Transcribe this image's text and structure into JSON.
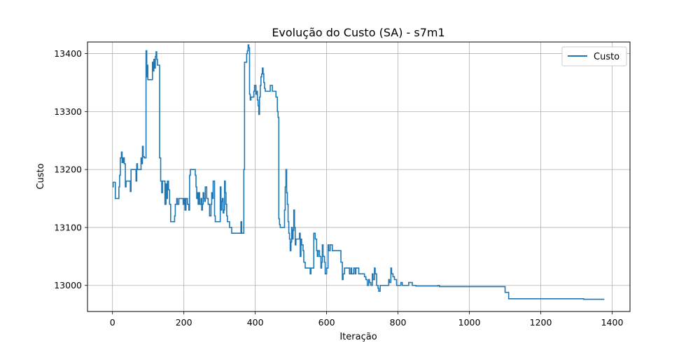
{
  "chart_data": {
    "type": "line",
    "title": "Evolução do Custo (SA) - s7m1",
    "xlabel": "Iteração",
    "ylabel": "Custo",
    "xlim": [
      -70,
      1450
    ],
    "ylim": [
      12955,
      13420
    ],
    "xticks": [
      0,
      200,
      400,
      600,
      800,
      1000,
      1200,
      1400
    ],
    "yticks": [
      13000,
      13100,
      13200,
      13300,
      13400
    ],
    "grid": true,
    "legend_position": "top-right",
    "color": "#1f77b4",
    "series": [
      {
        "name": "Custo",
        "step": "post",
        "points": [
          [
            0,
            13170
          ],
          [
            2,
            13178
          ],
          [
            6,
            13178
          ],
          [
            8,
            13150
          ],
          [
            16,
            13150
          ],
          [
            18,
            13170
          ],
          [
            20,
            13190
          ],
          [
            22,
            13220
          ],
          [
            25,
            13230
          ],
          [
            27,
            13212
          ],
          [
            30,
            13220
          ],
          [
            33,
            13210
          ],
          [
            36,
            13170
          ],
          [
            38,
            13180
          ],
          [
            48,
            13180
          ],
          [
            50,
            13162
          ],
          [
            52,
            13200
          ],
          [
            64,
            13200
          ],
          [
            66,
            13180
          ],
          [
            68,
            13210
          ],
          [
            70,
            13200
          ],
          [
            78,
            13200
          ],
          [
            80,
            13220
          ],
          [
            82,
            13210
          ],
          [
            84,
            13240
          ],
          [
            86,
            13222
          ],
          [
            89,
            13220
          ],
          [
            92,
            13220
          ],
          [
            94,
            13405
          ],
          [
            96,
            13360
          ],
          [
            98,
            13380
          ],
          [
            99,
            13355
          ],
          [
            110,
            13355
          ],
          [
            112,
            13385
          ],
          [
            114,
            13370
          ],
          [
            116,
            13390
          ],
          [
            118,
            13375
          ],
          [
            120,
            13395
          ],
          [
            122,
            13403
          ],
          [
            124,
            13390
          ],
          [
            126,
            13380
          ],
          [
            130,
            13380
          ],
          [
            132,
            13220
          ],
          [
            135,
            13180
          ],
          [
            138,
            13160
          ],
          [
            140,
            13180
          ],
          [
            145,
            13180
          ],
          [
            147,
            13140
          ],
          [
            150,
            13175
          ],
          [
            152,
            13150
          ],
          [
            154,
            13180
          ],
          [
            157,
            13165
          ],
          [
            160,
            13140
          ],
          [
            163,
            13110
          ],
          [
            166,
            13110
          ],
          [
            174,
            13120
          ],
          [
            176,
            13140
          ],
          [
            180,
            13150
          ],
          [
            182,
            13140
          ],
          [
            186,
            13150
          ],
          [
            198,
            13140
          ],
          [
            200,
            13150
          ],
          [
            203,
            13130
          ],
          [
            206,
            13150
          ],
          [
            210,
            13140
          ],
          [
            214,
            13130
          ],
          [
            216,
            13190
          ],
          [
            218,
            13200
          ],
          [
            230,
            13200
          ],
          [
            232,
            13190
          ],
          [
            234,
            13170
          ],
          [
            236,
            13150
          ],
          [
            238,
            13160
          ],
          [
            240,
            13140
          ],
          [
            242,
            13160
          ],
          [
            244,
            13140
          ],
          [
            246,
            13140
          ],
          [
            248,
            13150
          ],
          [
            250,
            13130
          ],
          [
            252,
            13140
          ],
          [
            254,
            13160
          ],
          [
            256,
            13150
          ],
          [
            258,
            13145
          ],
          [
            260,
            13170
          ],
          [
            264,
            13150
          ],
          [
            268,
            13140
          ],
          [
            272,
            13120
          ],
          [
            276,
            13140
          ],
          [
            278,
            13160
          ],
          [
            280,
            13150
          ],
          [
            282,
            13180
          ],
          [
            286,
            13120
          ],
          [
            288,
            13110
          ],
          [
            300,
            13110
          ],
          [
            302,
            13170
          ],
          [
            304,
            13130
          ],
          [
            306,
            13145
          ],
          [
            308,
            13150
          ],
          [
            310,
            13125
          ],
          [
            312,
            13130
          ],
          [
            314,
            13180
          ],
          [
            316,
            13160
          ],
          [
            318,
            13140
          ],
          [
            320,
            13120
          ],
          [
            322,
            13110
          ],
          [
            326,
            13110
          ],
          [
            328,
            13100
          ],
          [
            332,
            13100
          ],
          [
            334,
            13090
          ],
          [
            356,
            13090
          ],
          [
            360,
            13110
          ],
          [
            362,
            13090
          ],
          [
            364,
            13090
          ],
          [
            368,
            13200
          ],
          [
            370,
            13385
          ],
          [
            374,
            13385
          ],
          [
            376,
            13400
          ],
          [
            378,
            13405
          ],
          [
            380,
            13415
          ],
          [
            382,
            13410
          ],
          [
            384,
            13330
          ],
          [
            386,
            13320
          ],
          [
            388,
            13325
          ],
          [
            392,
            13325
          ],
          [
            396,
            13335
          ],
          [
            398,
            13345
          ],
          [
            400,
            13345
          ],
          [
            402,
            13330
          ],
          [
            404,
            13335
          ],
          [
            406,
            13320
          ],
          [
            408,
            13310
          ],
          [
            410,
            13295
          ],
          [
            412,
            13325
          ],
          [
            414,
            13345
          ],
          [
            416,
            13360
          ],
          [
            418,
            13365
          ],
          [
            420,
            13375
          ],
          [
            422,
            13365
          ],
          [
            424,
            13350
          ],
          [
            426,
            13340
          ],
          [
            428,
            13335
          ],
          [
            434,
            13335
          ],
          [
            440,
            13335
          ],
          [
            442,
            13345
          ],
          [
            444,
            13345
          ],
          [
            448,
            13335
          ],
          [
            452,
            13335
          ],
          [
            458,
            13325
          ],
          [
            462,
            13300
          ],
          [
            464,
            13290
          ],
          [
            466,
            13115
          ],
          [
            468,
            13105
          ],
          [
            470,
            13100
          ],
          [
            480,
            13100
          ],
          [
            482,
            13130
          ],
          [
            484,
            13170
          ],
          [
            486,
            13200
          ],
          [
            488,
            13160
          ],
          [
            490,
            13140
          ],
          [
            492,
            13110
          ],
          [
            494,
            13090
          ],
          [
            496,
            13080
          ],
          [
            498,
            13060
          ],
          [
            500,
            13075
          ],
          [
            502,
            13100
          ],
          [
            504,
            13080
          ],
          [
            506,
            13095
          ],
          [
            508,
            13130
          ],
          [
            510,
            13100
          ],
          [
            512,
            13070
          ],
          [
            514,
            13080
          ],
          [
            522,
            13080
          ],
          [
            524,
            13090
          ],
          [
            526,
            13050
          ],
          [
            528,
            13080
          ],
          [
            530,
            13070
          ],
          [
            534,
            13060
          ],
          [
            536,
            13040
          ],
          [
            540,
            13030
          ],
          [
            550,
            13030
          ],
          [
            554,
            13020
          ],
          [
            556,
            13030
          ],
          [
            562,
            13030
          ],
          [
            564,
            13090
          ],
          [
            568,
            13080
          ],
          [
            572,
            13060
          ],
          [
            574,
            13050
          ],
          [
            576,
            13060
          ],
          [
            580,
            13050
          ],
          [
            584,
            13030
          ],
          [
            586,
            13040
          ],
          [
            588,
            13070
          ],
          [
            590,
            13050
          ],
          [
            594,
            13040
          ],
          [
            596,
            13020
          ],
          [
            600,
            13030
          ],
          [
            604,
            13070
          ],
          [
            606,
            13060
          ],
          [
            610,
            13070
          ],
          [
            616,
            13060
          ],
          [
            620,
            13060
          ],
          [
            632,
            13060
          ],
          [
            636,
            13060
          ],
          [
            640,
            13040
          ],
          [
            644,
            13010
          ],
          [
            646,
            13020
          ],
          [
            650,
            13030
          ],
          [
            660,
            13030
          ],
          [
            664,
            13020
          ],
          [
            668,
            13030
          ],
          [
            670,
            13020
          ],
          [
            676,
            13030
          ],
          [
            680,
            13020
          ],
          [
            682,
            13030
          ],
          [
            690,
            13020
          ],
          [
            700,
            13020
          ],
          [
            706,
            13015
          ],
          [
            710,
            13010
          ],
          [
            714,
            13000
          ],
          [
            718,
            13010
          ],
          [
            720,
            13005
          ],
          [
            724,
            13000
          ],
          [
            728,
            13020
          ],
          [
            730,
            13010
          ],
          [
            734,
            13030
          ],
          [
            736,
            13020
          ],
          [
            740,
            13000
          ],
          [
            744,
            12995
          ],
          [
            746,
            12990
          ],
          [
            750,
            13000
          ],
          [
            760,
            13000
          ],
          [
            770,
            13000
          ],
          [
            774,
            13010
          ],
          [
            776,
            13005
          ],
          [
            780,
            13030
          ],
          [
            782,
            13020
          ],
          [
            786,
            13015
          ],
          [
            790,
            13010
          ],
          [
            796,
            13000
          ],
          [
            800,
            13000
          ],
          [
            808,
            13005
          ],
          [
            812,
            13000
          ],
          [
            820,
            13000
          ],
          [
            830,
            13005
          ],
          [
            840,
            13000
          ],
          [
            850,
            12999
          ],
          [
            860,
            12999
          ],
          [
            870,
            12999
          ],
          [
            880,
            12999
          ],
          [
            890,
            12999
          ],
          [
            900,
            12999
          ],
          [
            910,
            12999
          ],
          [
            912,
            13000
          ],
          [
            916,
            12998
          ],
          [
            930,
            12998
          ],
          [
            940,
            12998
          ],
          [
            950,
            12998
          ],
          [
            960,
            12998
          ],
          [
            970,
            12998
          ],
          [
            980,
            12998
          ],
          [
            990,
            12998
          ],
          [
            1000,
            12998
          ],
          [
            1010,
            12998
          ],
          [
            1020,
            12998
          ],
          [
            1030,
            12998
          ],
          [
            1040,
            12998
          ],
          [
            1050,
            12998
          ],
          [
            1060,
            12998
          ],
          [
            1070,
            12998
          ],
          [
            1080,
            12998
          ],
          [
            1090,
            12998
          ],
          [
            1100,
            12988
          ],
          [
            1110,
            12977
          ],
          [
            1120,
            12977
          ],
          [
            1200,
            12977
          ],
          [
            1250,
            12977
          ],
          [
            1300,
            12977
          ],
          [
            1310,
            12977
          ],
          [
            1320,
            12976
          ],
          [
            1378,
            12976
          ]
        ]
      }
    ]
  }
}
